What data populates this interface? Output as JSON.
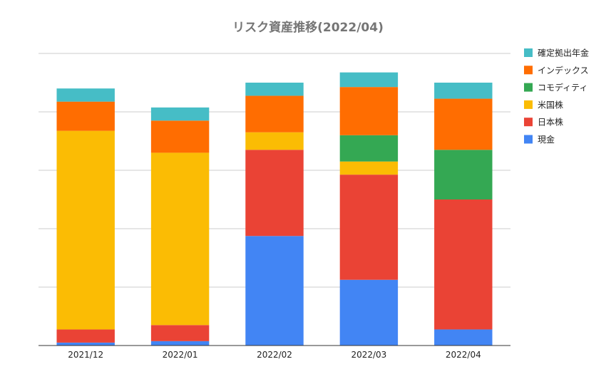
{
  "chart_data": {
    "type": "bar",
    "stacked": true,
    "title": "リスク資産推移(2022/04)",
    "xlabel": "",
    "ylabel": "",
    "ylim": [
      0,
      100
    ],
    "grid": true,
    "legend_position": "right",
    "categories": [
      "2021/12",
      "2022/01",
      "2022/02",
      "2022/03",
      "2022/04"
    ],
    "series": [
      {
        "name": "現金",
        "color": "#4285F4",
        "values": [
          1,
          1.5,
          37.5,
          22.5,
          5.5
        ]
      },
      {
        "name": "日本株",
        "color": "#EA4335",
        "values": [
          4.5,
          5.5,
          29.5,
          36,
          44.5
        ]
      },
      {
        "name": "米国株",
        "color": "#FBBC04",
        "values": [
          68,
          59,
          6,
          4.5,
          0
        ]
      },
      {
        "name": "コモディティ",
        "color": "#34A853",
        "values": [
          0,
          0,
          0,
          9,
          17
        ]
      },
      {
        "name": "インデックス",
        "color": "#FF6D01",
        "values": [
          10,
          11,
          12.5,
          16.5,
          17.5
        ]
      },
      {
        "name": "確定拠出年金",
        "color": "#46BDC6",
        "values": [
          4.5,
          4.5,
          4.5,
          5,
          5.5
        ]
      }
    ],
    "legend_order": [
      "確定拠出年金",
      "インデックス",
      "コモディティ",
      "米国株",
      "日本株",
      "現金"
    ]
  }
}
